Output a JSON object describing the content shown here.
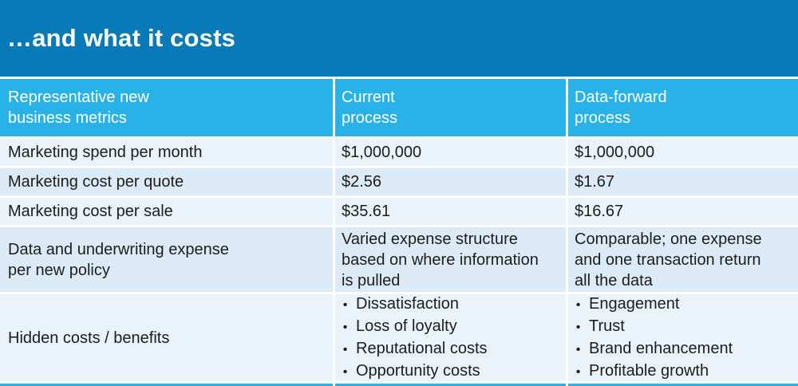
{
  "title": "…and what it costs",
  "bullet_char": "•",
  "colors": {
    "title_band": "#087ab8",
    "header_row": "#29b2e7",
    "row_light": "#ebf3fa",
    "row_dark": "#dceaf7",
    "text_dark": "#1d1d1b",
    "text_white": "#ffffff"
  },
  "table": {
    "columns": [
      {
        "label": "Representative new\nbusiness metrics"
      },
      {
        "label": "Current\nprocess"
      },
      {
        "label": "Data-forward\nprocess"
      }
    ],
    "rows": [
      {
        "metric": "Marketing spend per month",
        "current": "$1,000,000",
        "data_forward": "$1,000,000"
      },
      {
        "metric": "Marketing cost per quote",
        "current": "$2.56",
        "data_forward": "$1.67"
      },
      {
        "metric": "Marketing cost per sale",
        "current": "$35.61",
        "data_forward": "$16.67"
      },
      {
        "metric": "Data and underwriting expense\nper new policy",
        "current": "Varied expense structure\nbased on where information\nis pulled",
        "data_forward": "Comparable; one expense\nand one transaction return\nall the data"
      },
      {
        "metric": "Hidden costs / benefits",
        "current_items": [
          "Dissatisfaction",
          "Loss of loyalty",
          "Reputational costs",
          "Opportunity costs"
        ],
        "data_forward_items": [
          "Engagement",
          "Trust",
          "Brand enhancement",
          "Profitable growth"
        ]
      }
    ]
  }
}
